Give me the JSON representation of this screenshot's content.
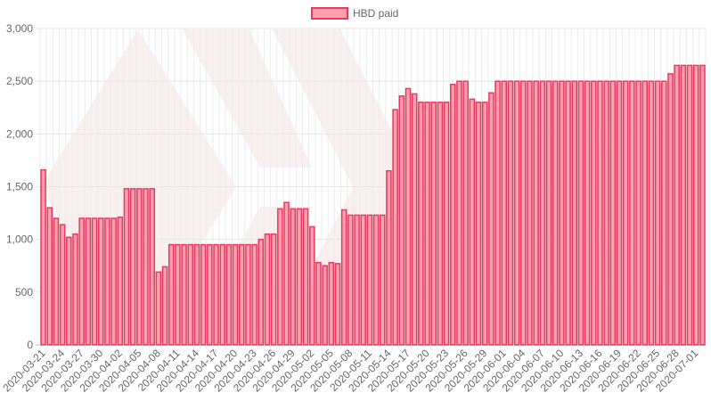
{
  "chart_data": {
    "type": "bar",
    "series": [
      {
        "name": "HBD paid",
        "fill": "#ff9fb0",
        "stroke": "#e8395e",
        "values": [
          1660,
          1300,
          1200,
          1140,
          1020,
          1050,
          1200,
          1200,
          1200,
          1200,
          1200,
          1200,
          1210,
          1480,
          1480,
          1480,
          1480,
          1480,
          690,
          740,
          950,
          950,
          950,
          950,
          950,
          950,
          950,
          950,
          950,
          950,
          950,
          950,
          950,
          950,
          1000,
          1050,
          1050,
          1290,
          1350,
          1290,
          1290,
          1290,
          1120,
          780,
          750,
          780,
          770,
          1280,
          1230,
          1230,
          1230,
          1230,
          1230,
          1230,
          1650,
          2230,
          2360,
          2430,
          2380,
          2300,
          2300,
          2300,
          2300,
          2300,
          2470,
          2500,
          2500,
          2330,
          2300,
          2300,
          2390,
          2500,
          2500,
          2500,
          2500,
          2500,
          2500,
          2500,
          2500,
          2500,
          2500,
          2500,
          2500,
          2500,
          2500,
          2500,
          2500,
          2500,
          2500,
          2500,
          2500,
          2500,
          2500,
          2500,
          2500,
          2500,
          2500,
          2500,
          2570,
          2650,
          2650,
          2650,
          2650,
          2650
        ]
      }
    ],
    "x_start": "2020-03-21",
    "x_end": "2020-07-01",
    "x_tick_labels": [
      "2020-03-21",
      "2020-03-24",
      "2020-03-27",
      "2020-03-30",
      "2020-04-02",
      "2020-04-05",
      "2020-04-08",
      "2020-04-11",
      "2020-04-14",
      "2020-04-17",
      "2020-04-20",
      "2020-04-23",
      "2020-04-26",
      "2020-04-29",
      "2020-05-02",
      "2020-05-05",
      "2020-05-08",
      "2020-05-11",
      "2020-05-14",
      "2020-05-17",
      "2020-05-20",
      "2020-05-23",
      "2020-05-26",
      "2020-05-29",
      "2020-06-01",
      "2020-06-04",
      "2020-06-07",
      "2020-06-10",
      "2020-06-13",
      "2020-06-16",
      "2020-06-19",
      "2020-06-22",
      "2020-06-25",
      "2020-06-28",
      "2020-07-01"
    ],
    "y_tick_labels": [
      "0",
      "500",
      "1,000",
      "1,500",
      "2,000",
      "2,500",
      "3,000"
    ],
    "ylim": [
      0,
      3000
    ],
    "grid": true,
    "legend_position": "top"
  }
}
